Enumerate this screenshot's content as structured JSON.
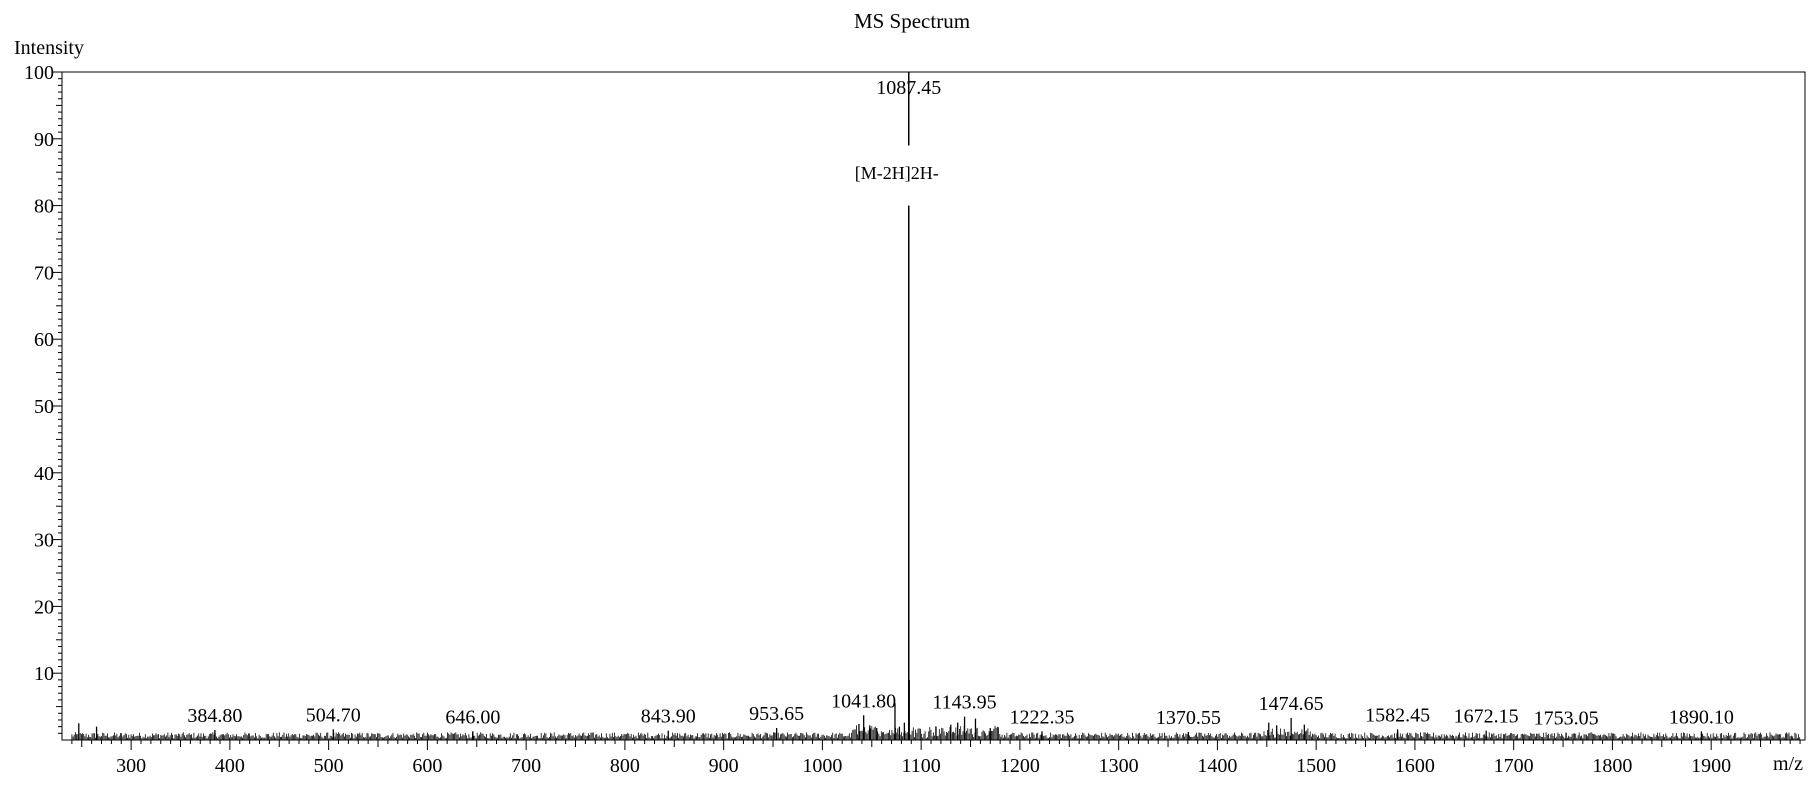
{
  "chart_data": {
    "type": "bar",
    "title": "MS Spectrum",
    "ylabel": "Intensity",
    "xlabel": "m/z",
    "xlim": [
      230,
      1995
    ],
    "ylim": [
      0,
      100
    ],
    "grid": false,
    "x_ticks": [
      300,
      400,
      500,
      600,
      700,
      800,
      900,
      1000,
      1100,
      1200,
      1300,
      1400,
      1500,
      1600,
      1700,
      1800,
      1900
    ],
    "y_ticks": [
      10,
      20,
      30,
      40,
      50,
      60,
      70,
      80,
      90,
      100
    ],
    "base_peak": {
      "mz": 1087.45,
      "intensity": 100,
      "label": "1087.45",
      "annotation": "[M-2H]2H-"
    },
    "peaks": [
      {
        "mz": 247.0,
        "intensity": 2.5
      },
      {
        "mz": 265.0,
        "intensity": 2.0
      },
      {
        "mz": 384.8,
        "intensity": 1.5,
        "label": "384.80"
      },
      {
        "mz": 504.7,
        "intensity": 1.6,
        "label": "504.70"
      },
      {
        "mz": 646.0,
        "intensity": 1.3,
        "label": "646.00"
      },
      {
        "mz": 843.9,
        "intensity": 1.4,
        "label": "843.90"
      },
      {
        "mz": 953.65,
        "intensity": 1.8,
        "label": "953.65"
      },
      {
        "mz": 1037.0,
        "intensity": 2.4
      },
      {
        "mz": 1041.8,
        "intensity": 3.7,
        "label": "1041.80"
      },
      {
        "mz": 1048.0,
        "intensity": 2.2
      },
      {
        "mz": 1055.0,
        "intensity": 1.8
      },
      {
        "mz": 1073.5,
        "intensity": 5.5
      },
      {
        "mz": 1078.0,
        "intensity": 2.0
      },
      {
        "mz": 1083.0,
        "intensity": 2.6
      },
      {
        "mz": 1087.95,
        "intensity": 9.0
      },
      {
        "mz": 1115.0,
        "intensity": 2.0
      },
      {
        "mz": 1130.0,
        "intensity": 2.3
      },
      {
        "mz": 1137.0,
        "intensity": 2.6
      },
      {
        "mz": 1143.95,
        "intensity": 3.5,
        "label": "1143.95"
      },
      {
        "mz": 1155.0,
        "intensity": 3.2
      },
      {
        "mz": 1170.0,
        "intensity": 1.8
      },
      {
        "mz": 1222.35,
        "intensity": 1.3,
        "label": "1222.35"
      },
      {
        "mz": 1370.55,
        "intensity": 1.2,
        "label": "1370.55"
      },
      {
        "mz": 1452.0,
        "intensity": 2.6
      },
      {
        "mz": 1460.0,
        "intensity": 2.2
      },
      {
        "mz": 1474.65,
        "intensity": 3.3,
        "label": "1474.65"
      },
      {
        "mz": 1488.0,
        "intensity": 2.3
      },
      {
        "mz": 1582.45,
        "intensity": 1.6,
        "label": "1582.45"
      },
      {
        "mz": 1672.15,
        "intensity": 1.4,
        "label": "1672.15"
      },
      {
        "mz": 1753.05,
        "intensity": 1.1,
        "label": "1753.05"
      },
      {
        "mz": 1890.1,
        "intensity": 1.3,
        "label": "1890.10"
      }
    ]
  }
}
